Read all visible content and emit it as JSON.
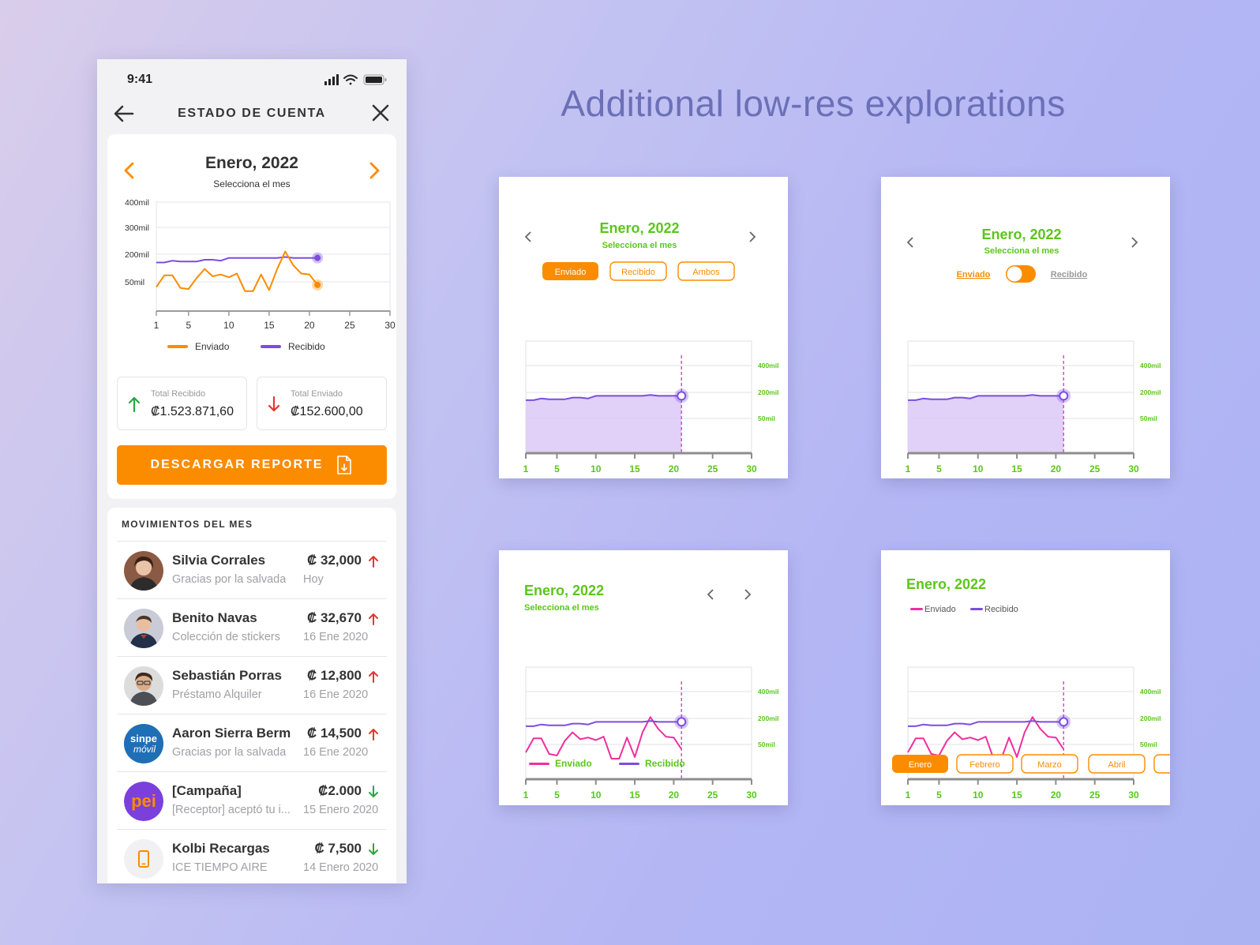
{
  "statusbar": {
    "time": "9:41"
  },
  "nav": {
    "title": "ESTADO DE CUENTA"
  },
  "summary": {
    "month": "Enero, 2022",
    "month_hint": "Selecciona el mes",
    "legend": {
      "sent": "Enviado",
      "received": "Recibido"
    },
    "total_received_label": "Total Recibido",
    "total_received_value": "₡1.523.871,60",
    "total_sent_label": "Total Enviado",
    "total_sent_value": "₡152.600,00",
    "download_label": "DESCARGAR REPORTE"
  },
  "colors": {
    "accent": "#fb8c00",
    "received": "#7c4ddf",
    "sent_alt": "#ef2f9e",
    "green": "#5bc61a",
    "up": "#e03a2f",
    "down": "#27a844"
  },
  "chart_data": [
    {
      "type": "line",
      "ylabels": [
        "400mil",
        "300mil",
        "200mil",
        "50mil"
      ],
      "x_ticks": [
        1,
        5,
        10,
        15,
        20,
        25,
        30
      ],
      "x_range": [
        1,
        30
      ],
      "series": [
        {
          "name": "Recibido",
          "x": [
            1,
            2,
            3,
            4,
            5,
            6,
            7,
            8,
            9,
            10,
            11,
            12,
            13,
            14,
            15,
            16,
            17,
            18,
            19,
            20,
            21
          ],
          "values": [
            155,
            155,
            165,
            160,
            160,
            160,
            170,
            170,
            165,
            180,
            180,
            180,
            180,
            180,
            180,
            180,
            185,
            180,
            180,
            180,
            180
          ]
        },
        {
          "name": "Enviado",
          "x": [
            1,
            2,
            3,
            4,
            5,
            6,
            7,
            8,
            9,
            10,
            11,
            12,
            13,
            14,
            15,
            16,
            17,
            18,
            19,
            20,
            21
          ],
          "values": [
            25,
            85,
            85,
            20,
            15,
            70,
            120,
            80,
            90,
            75,
            95,
            5,
            5,
            90,
            10,
            120,
            210,
            140,
            95,
            90,
            35
          ]
        }
      ]
    }
  ],
  "movements": {
    "title": "MOVIMIENTOS DEL MES",
    "items": [
      {
        "name": "Silvia Corrales",
        "desc": "Gracias por la salvada",
        "amount": "₡ 32,000",
        "date": "Hoy",
        "dir": "up"
      },
      {
        "name": "Benito Navas",
        "desc": "Colección de stickers",
        "amount": "₡ 32,670",
        "date": "16 Ene 2020",
        "dir": "up"
      },
      {
        "name": "Sebastián Porras",
        "desc": "Préstamo Alquiler",
        "amount": "₡ 12,800",
        "date": "16 Ene 2020",
        "dir": "up"
      },
      {
        "name": "Aaron Sierra Berm",
        "desc": "Gracias por la salvada",
        "amount": "₡ 14,500",
        "date": "16 Ene 2020",
        "dir": "up"
      },
      {
        "name": "[Campaña]",
        "desc": "[Receptor] aceptó tu i...",
        "amount": "₡2.000",
        "date": "15 Enero 2020",
        "dir": "down"
      },
      {
        "name": "Kolbi Recargas",
        "desc": "ICE TIEMPO AIRE",
        "amount": "₡ 7,500",
        "date": "14 Enero 2020",
        "dir": "down"
      }
    ],
    "logos": {
      "sinpe": "sinpe",
      "sinpe_sub": "móvil",
      "pei": "pei"
    }
  },
  "heading": "Additional low-res explorations",
  "explorations": {
    "month": "Enero, 2022",
    "month_hint": "Selecciona el mes",
    "ylabels": [
      "400mil",
      "200mil",
      "50mil"
    ],
    "x_ticks": [
      "1",
      "5",
      "10",
      "15",
      "20",
      "25",
      "30"
    ],
    "chips": [
      "Enviado",
      "Recibido",
      "Ambos"
    ],
    "toggle": {
      "left": "Enviado",
      "right": "Recibido"
    },
    "legend": {
      "sent": "Enviado",
      "received": "Recibido"
    },
    "months": [
      "Enero",
      "Febrero",
      "Marzo",
      "Abril"
    ]
  }
}
